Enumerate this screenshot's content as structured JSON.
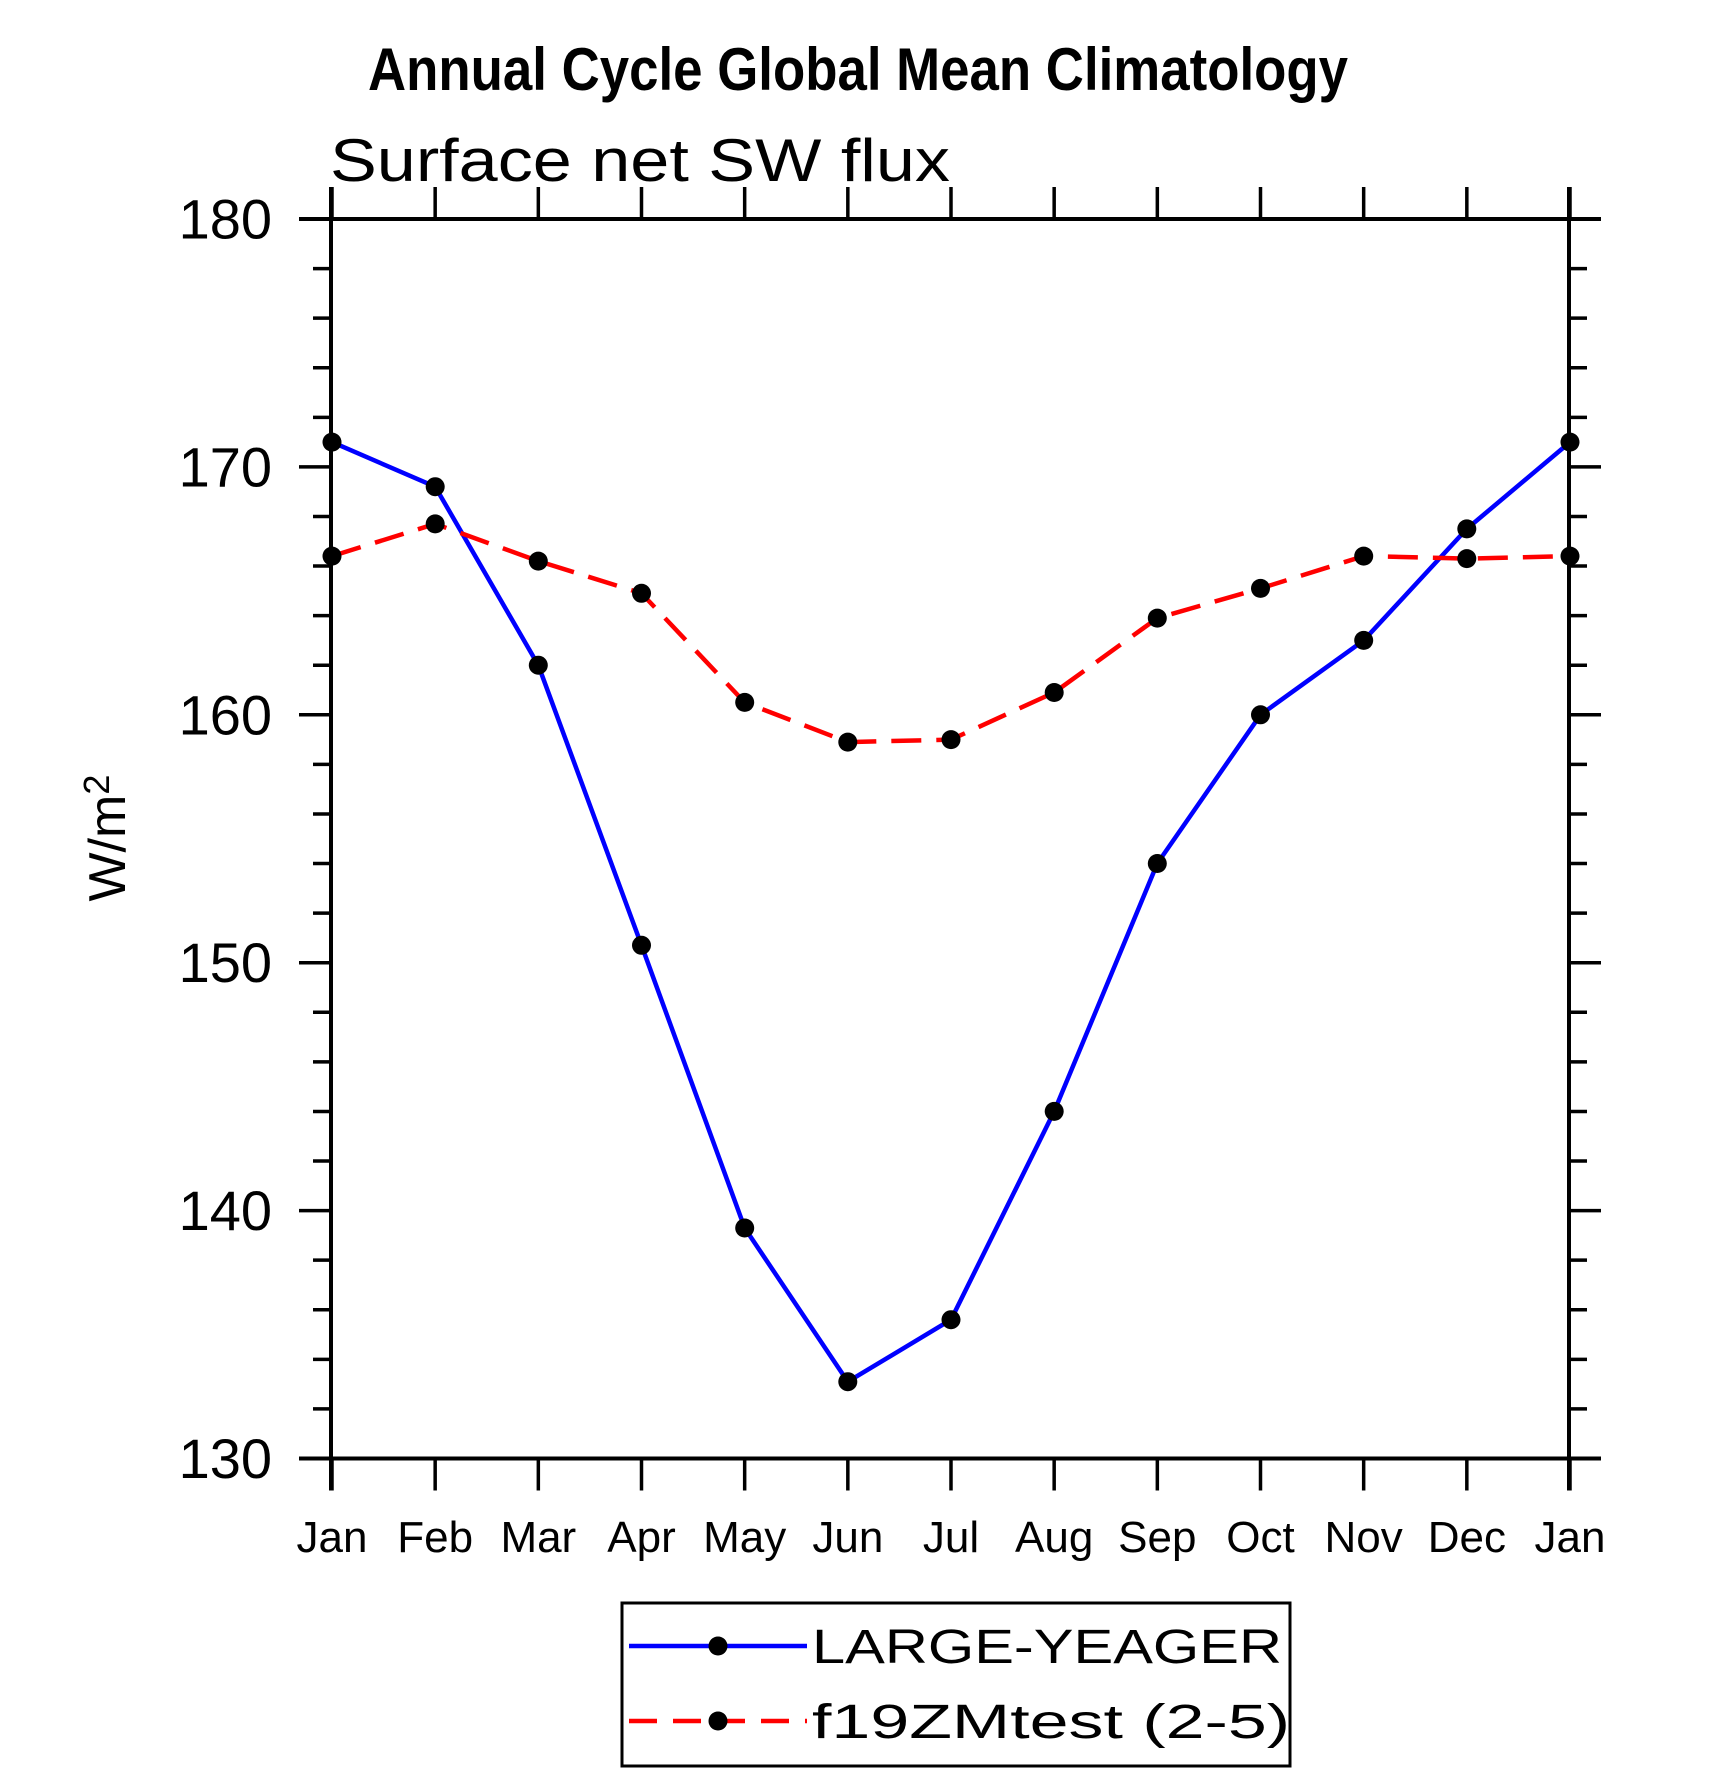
{
  "chart_data": {
    "type": "line",
    "title": "Annual Cycle Global Mean Climatology",
    "subtitle": "Surface net SW flux",
    "ylabel": "W/m²",
    "ylabel_base": "W/m",
    "ylabel_exponent": "2",
    "x_categories": [
      "Jan",
      "Feb",
      "Mar",
      "Apr",
      "May",
      "Jun",
      "Jul",
      "Aug",
      "Sep",
      "Oct",
      "Nov",
      "Dec",
      "Jan"
    ],
    "ylim": [
      130,
      180
    ],
    "ytick_major": [
      130,
      140,
      150,
      160,
      170,
      180
    ],
    "ytick_minor_step": 2,
    "grid": false,
    "axis_color": "#000000",
    "marker_color": "#000000",
    "series": [
      {
        "name": "LARGE-YEAGER",
        "color": "#0000ff",
        "line_style": "solid",
        "marker": "circle",
        "values": [
          171.0,
          169.2,
          162.0,
          150.7,
          139.3,
          133.1,
          135.6,
          144.0,
          154.0,
          160.0,
          163.0,
          167.5,
          171.0
        ]
      },
      {
        "name": "f19ZMtest (2-5)",
        "color": "#ff0000",
        "line_style": "dashed",
        "marker": "circle",
        "values": [
          166.4,
          167.7,
          166.2,
          164.9,
          160.5,
          158.9,
          159.0,
          160.9,
          163.9,
          165.1,
          166.4,
          166.3,
          166.4
        ]
      }
    ],
    "legend_position": "bottom-center"
  }
}
